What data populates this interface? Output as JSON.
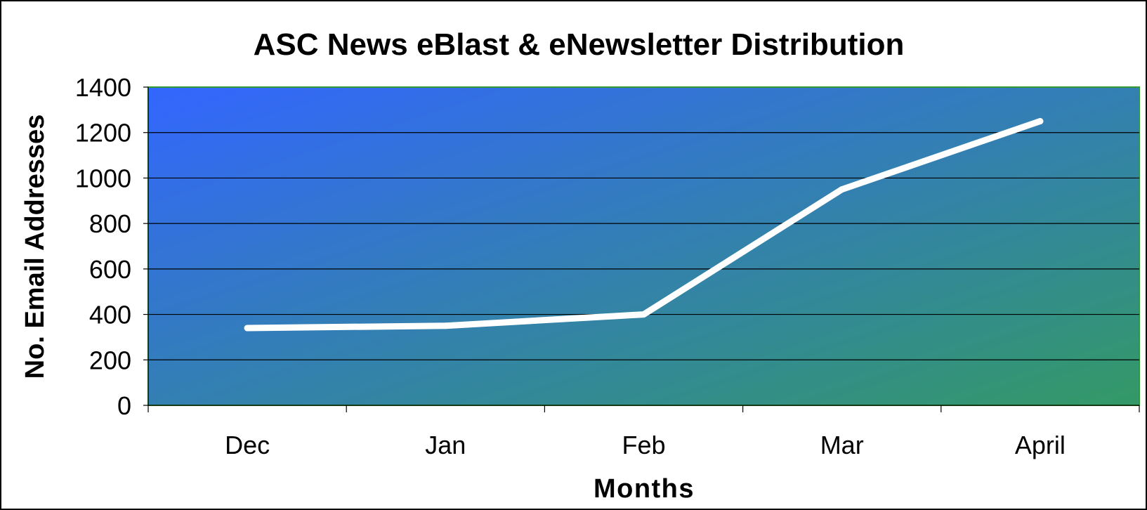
{
  "chart_data": {
    "type": "line",
    "title": "ASC News eBlast & eNewsletter Distribution",
    "xlabel": "Months",
    "ylabel": "No. Email Addresses",
    "categories": [
      "Dec",
      "Jan",
      "Feb",
      "Mar",
      "April"
    ],
    "series": [
      {
        "values": [
          340,
          350,
          400,
          950,
          1250
        ],
        "color": "#ffffff"
      }
    ],
    "ylim": [
      0,
      1400
    ],
    "yticks": [
      0,
      200,
      400,
      600,
      800,
      1000,
      1200,
      1400
    ],
    "grid": true,
    "legend": "none",
    "plot_gradient": [
      "#3366ff",
      "#339966"
    ]
  }
}
